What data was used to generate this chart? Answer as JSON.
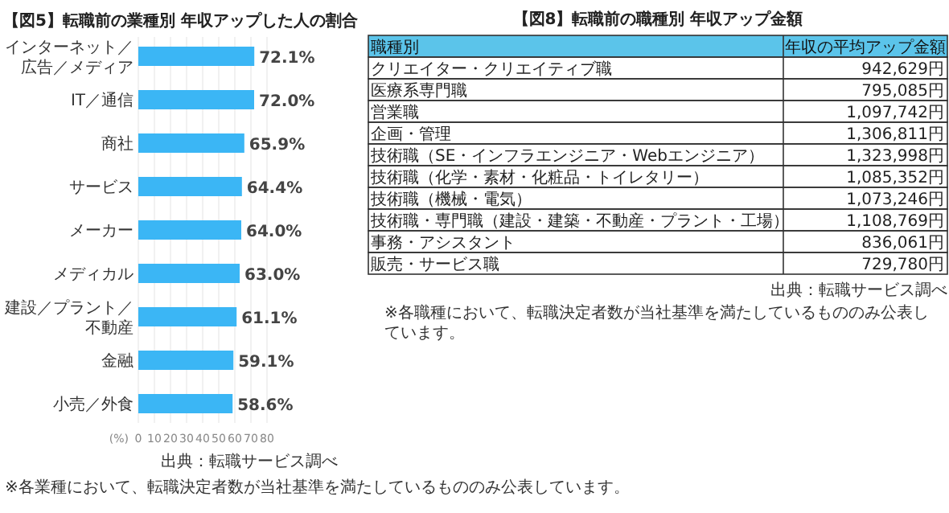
{
  "chart_data": [
    {
      "type": "bar",
      "orientation": "horizontal",
      "title": "【図5】転職前の業種別 年収アップした人の割合",
      "xlabel": "(%)",
      "categories": [
        "インターネット／広告／メディア",
        "IT／通信",
        "商社",
        "サービス",
        "メーカー",
        "メディカル",
        "建設／プラント／不動産",
        "金融",
        "小売／外食"
      ],
      "values": [
        72.1,
        72.0,
        65.9,
        64.4,
        64.0,
        63.0,
        61.1,
        59.1,
        58.6
      ],
      "value_labels": [
        "72.1%",
        "72.0%",
        "65.9%",
        "64.4%",
        "64.0%",
        "63.0%",
        "61.1%",
        "59.1%",
        "58.6%"
      ],
      "color": "#3bb6f5",
      "xlim": [
        0,
        80
      ],
      "xticks": [
        0,
        10,
        20,
        30,
        40,
        50,
        60,
        70,
        80
      ],
      "grid": "x",
      "annotations": [
        "出典：転職サービス調べ",
        "※各業種において、転職決定者数が当社基準を満たしているもののみ公表しています。"
      ]
    },
    {
      "type": "other",
      "title": "【図8】転職前の職種別 年収アップ金額",
      "categories": [
        "クリエイター・クリエイティブ職",
        "医療系専門職",
        "営業職",
        "企画・管理",
        "技術職（SE・インフラエンジニア・Webエンジニア）",
        "技術職（化学・素材・化粧品・トイレタリー）",
        "技術職（機械・電気）",
        "技術職・専門職（建設・建築・不動産・プラント・工場）",
        "事務・アシスタント",
        "販売・サービス職"
      ],
      "values": [
        942629,
        795085,
        1097742,
        1306811,
        1323998,
        1085352,
        1073246,
        1108769,
        836061,
        729780
      ],
      "value_labels": [
        "942,629円",
        "795,085円",
        "1,097,742円",
        "1,306,811円",
        "1,323,998円",
        "1,085,352円",
        "1,073,246円",
        "1,108,769円",
        "836,061円",
        "729,780円"
      ],
      "annotations": [
        "職種別",
        "年収の平均アップ金額",
        "出典：転職サービス調べ",
        "※各職種において、転職決定者数が当社基準を満たしているもののみ公表しています。"
      ]
    }
  ]
}
